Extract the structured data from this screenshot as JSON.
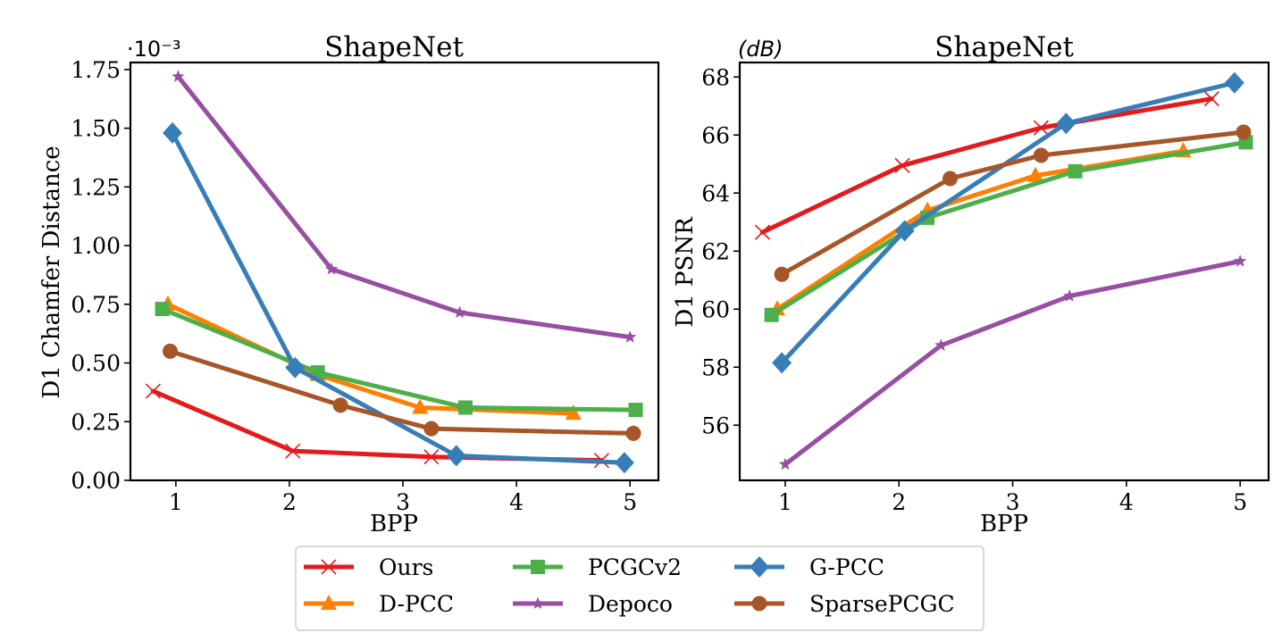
{
  "chart_data": [
    {
      "type": "line",
      "title": "ShapeNet",
      "xlabel": "BPP",
      "ylabel": "D1 Chamfer Distance",
      "scale_note": "·10⁻³",
      "xlim": [
        0.6,
        5.25
      ],
      "ylim": [
        0.0,
        1.78
      ],
      "xticks": [
        1,
        2,
        3,
        4,
        5
      ],
      "yticks": [
        0.0,
        0.25,
        0.5,
        0.75,
        1.0,
        1.25,
        1.5,
        1.75
      ],
      "ytick_labels": [
        "0.00",
        "0.25",
        "0.50",
        "0.75",
        "1.00",
        "1.25",
        "1.50",
        "1.75"
      ],
      "series": [
        {
          "name": "Ours",
          "color": "#e41a1c",
          "marker": "x",
          "x": [
            0.8,
            2.03,
            3.25,
            4.75
          ],
          "y": [
            0.38,
            0.125,
            0.1,
            0.085
          ]
        },
        {
          "name": "D-PCC",
          "color": "#ff7f00",
          "marker": "triangle",
          "x": [
            0.93,
            2.25,
            3.15,
            4.5
          ],
          "y": [
            0.75,
            0.45,
            0.31,
            0.285
          ]
        },
        {
          "name": "PCGCv2",
          "color": "#4daf4a",
          "marker": "square",
          "x": [
            0.88,
            2.25,
            3.55,
            5.05
          ],
          "y": [
            0.73,
            0.46,
            0.31,
            0.3
          ]
        },
        {
          "name": "Depoco",
          "color": "#984ea3",
          "marker": "star",
          "x": [
            1.02,
            2.37,
            3.5,
            5.0
          ],
          "y": [
            1.72,
            0.9,
            0.715,
            0.61
          ]
        },
        {
          "name": "G-PCC",
          "color": "#377eb8",
          "marker": "diamond",
          "x": [
            0.97,
            2.05,
            3.47,
            4.95
          ],
          "y": [
            1.48,
            0.48,
            0.105,
            0.075
          ]
        },
        {
          "name": "SparsePCGC",
          "color": "#a65628",
          "marker": "circle",
          "x": [
            0.95,
            2.45,
            3.25,
            5.03
          ],
          "y": [
            0.55,
            0.32,
            0.22,
            0.2
          ]
        }
      ]
    },
    {
      "type": "line",
      "title": "ShapeNet",
      "xlabel": "BPP",
      "ylabel": "D1 PSNR",
      "unit_note": "(dB)",
      "xlim": [
        0.6,
        5.25
      ],
      "ylim": [
        54.1,
        68.5
      ],
      "xticks": [
        1,
        2,
        3,
        4,
        5
      ],
      "yticks": [
        56,
        58,
        60,
        62,
        64,
        66,
        68
      ],
      "ytick_labels": [
        "56",
        "58",
        "60",
        "62",
        "64",
        "66",
        "68"
      ],
      "series": [
        {
          "name": "Ours",
          "color": "#e41a1c",
          "marker": "x",
          "x": [
            0.8,
            2.03,
            3.25,
            4.75
          ],
          "y": [
            62.65,
            64.95,
            66.25,
            67.25
          ]
        },
        {
          "name": "D-PCC",
          "color": "#ff7f00",
          "marker": "triangle",
          "x": [
            0.93,
            2.25,
            3.2,
            4.5
          ],
          "y": [
            60.0,
            63.4,
            64.6,
            65.45
          ]
        },
        {
          "name": "PCGCv2",
          "color": "#4daf4a",
          "marker": "square",
          "x": [
            0.88,
            2.25,
            3.55,
            5.05
          ],
          "y": [
            59.8,
            63.15,
            64.75,
            65.75
          ]
        },
        {
          "name": "Depoco",
          "color": "#984ea3",
          "marker": "star",
          "x": [
            1.0,
            2.37,
            3.5,
            5.0
          ],
          "y": [
            54.65,
            58.75,
            60.45,
            61.65
          ]
        },
        {
          "name": "G-PCC",
          "color": "#377eb8",
          "marker": "diamond",
          "x": [
            0.97,
            2.05,
            3.47,
            4.95
          ],
          "y": [
            58.15,
            62.7,
            66.4,
            67.8
          ]
        },
        {
          "name": "SparsePCGC",
          "color": "#a65628",
          "marker": "circle",
          "x": [
            0.97,
            2.45,
            3.25,
            5.03
          ],
          "y": [
            61.2,
            64.5,
            65.3,
            66.1
          ]
        }
      ]
    }
  ],
  "legend": {
    "columns": [
      [
        "Ours",
        "D-PCC"
      ],
      [
        "PCGCv2",
        "Depoco"
      ],
      [
        "G-PCC",
        "SparsePCGC"
      ]
    ]
  }
}
